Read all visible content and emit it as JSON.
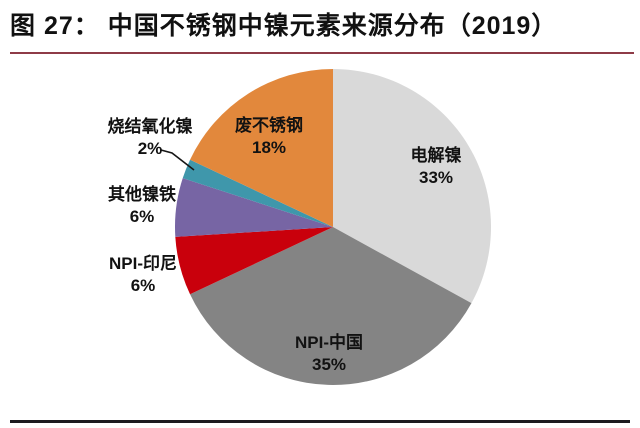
{
  "figure": {
    "title": "图 27： 中国不锈钢中镍元素来源分布（2019）",
    "title_rule_color": "#8E3B47",
    "bottom_rule_color": "#1C1C20"
  },
  "chart_data": {
    "type": "pie",
    "title": "中国不锈钢中镍元素来源分布（2019）",
    "direction": "clockwise",
    "start_angle_deg": 0,
    "legend_position": "none",
    "slices": [
      {
        "id": "electrolytic-nickel",
        "label": "电解镍",
        "value_pct": 33,
        "pct_text": "33%",
        "color": "#D9D9D9",
        "label_placement": "inside"
      },
      {
        "id": "npi-china",
        "label": "NPI-中国",
        "value_pct": 35,
        "pct_text": "35%",
        "color": "#848484",
        "label_placement": "inside"
      },
      {
        "id": "npi-indonesia",
        "label": "NPI-印尼",
        "value_pct": 6,
        "pct_text": "6%",
        "color": "#C9000C",
        "label_placement": "outside"
      },
      {
        "id": "other-ferronickel",
        "label": "其他镍铁",
        "value_pct": 6,
        "pct_text": "6%",
        "color": "#7765A4",
        "label_placement": "outside"
      },
      {
        "id": "sintered-nickel-oxide",
        "label": "烧结氧化镍",
        "value_pct": 2,
        "pct_text": "2%",
        "color": "#3F97AB",
        "label_placement": "outside-with-leader"
      },
      {
        "id": "scrap-stainless-steel",
        "label": "废不锈钢",
        "value_pct": 18,
        "pct_text": "18%",
        "color": "#E2883C",
        "label_placement": "inside"
      }
    ]
  }
}
